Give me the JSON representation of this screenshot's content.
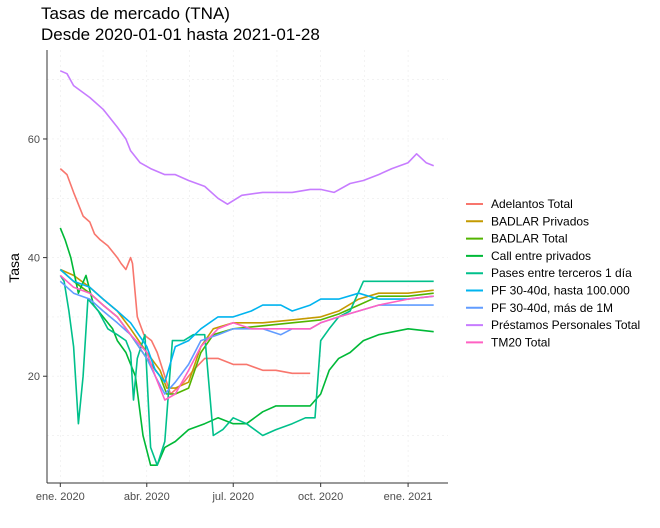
{
  "chart_data": {
    "type": "line",
    "title_line1": "Tasas de mercado (TNA)",
    "title_line2": "Desde 2020-01-01 hasta 2021-01-28",
    "xlabel": "",
    "ylabel": "Tasa",
    "x_ticks": [
      "ene. 2020",
      "abr. 2020",
      "jul. 2020",
      "oct. 2020",
      "ene. 2021"
    ],
    "y_ticks": [
      20,
      40,
      60
    ],
    "ylim": [
      2,
      75
    ],
    "xlim": [
      "2019-12-18",
      "2021-02-12"
    ],
    "grid": true,
    "legend_position": "right",
    "series": [
      {
        "name": "Adelantos Total",
        "color": "#F8766D",
        "points": [
          [
            "2020-01-01",
            55
          ],
          [
            "2020-01-08",
            54
          ],
          [
            "2020-01-15",
            51
          ],
          [
            "2020-01-25",
            47
          ],
          [
            "2020-02-01",
            46
          ],
          [
            "2020-02-06",
            44
          ],
          [
            "2020-02-12",
            43
          ],
          [
            "2020-02-20",
            42
          ],
          [
            "2020-03-01",
            40
          ],
          [
            "2020-03-05",
            39
          ],
          [
            "2020-03-10",
            38
          ],
          [
            "2020-03-15",
            40
          ],
          [
            "2020-03-17",
            39
          ],
          [
            "2020-03-22",
            30
          ],
          [
            "2020-03-29",
            27
          ],
          [
            "2020-04-06",
            26
          ],
          [
            "2020-04-12",
            24
          ],
          [
            "2020-04-20",
            20
          ],
          [
            "2020-04-26",
            17
          ],
          [
            "2020-05-03",
            18
          ],
          [
            "2020-05-10",
            19
          ],
          [
            "2020-05-20",
            21
          ],
          [
            "2020-06-01",
            23
          ],
          [
            "2020-06-15",
            23
          ],
          [
            "2020-07-01",
            22
          ],
          [
            "2020-07-15",
            22
          ],
          [
            "2020-08-01",
            21
          ],
          [
            "2020-08-15",
            21
          ],
          [
            "2020-09-01",
            20.5
          ],
          [
            "2020-09-20",
            20.5
          ]
        ]
      },
      {
        "name": "BADLAR Privados",
        "color": "#C49A00",
        "points": [
          [
            "2020-01-01",
            38
          ],
          [
            "2020-01-15",
            37
          ],
          [
            "2020-02-01",
            35
          ],
          [
            "2020-02-15",
            33
          ],
          [
            "2020-03-01",
            31
          ],
          [
            "2020-03-15",
            28
          ],
          [
            "2020-04-01",
            24
          ],
          [
            "2020-04-15",
            21
          ],
          [
            "2020-04-22",
            18
          ],
          [
            "2020-05-01",
            18
          ],
          [
            "2020-05-15",
            19
          ],
          [
            "2020-05-28",
            25
          ],
          [
            "2020-06-10",
            28
          ],
          [
            "2020-07-01",
            29
          ],
          [
            "2020-08-01",
            29
          ],
          [
            "2020-09-01",
            29.5
          ],
          [
            "2020-10-01",
            30
          ],
          [
            "2020-10-20",
            31
          ],
          [
            "2020-11-10",
            33
          ],
          [
            "2020-12-01",
            34
          ],
          [
            "2021-01-01",
            34
          ],
          [
            "2021-01-28",
            34.5
          ]
        ]
      },
      {
        "name": "BADLAR Total",
        "color": "#53B400",
        "points": [
          [
            "2020-01-01",
            38
          ],
          [
            "2020-01-15",
            36
          ],
          [
            "2020-02-01",
            34
          ],
          [
            "2020-02-15",
            32
          ],
          [
            "2020-03-01",
            30
          ],
          [
            "2020-03-15",
            27
          ],
          [
            "2020-04-01",
            23
          ],
          [
            "2020-04-15",
            20
          ],
          [
            "2020-04-22",
            17
          ],
          [
            "2020-05-01",
            17
          ],
          [
            "2020-05-15",
            18
          ],
          [
            "2020-05-28",
            24
          ],
          [
            "2020-06-10",
            27
          ],
          [
            "2020-07-01",
            28
          ],
          [
            "2020-08-01",
            28.5
          ],
          [
            "2020-09-01",
            29
          ],
          [
            "2020-10-01",
            29.5
          ],
          [
            "2020-10-20",
            30.5
          ],
          [
            "2020-11-10",
            32
          ],
          [
            "2020-12-01",
            33.5
          ],
          [
            "2021-01-01",
            33.5
          ],
          [
            "2021-01-28",
            34
          ]
        ]
      },
      {
        "name": "Call entre privados",
        "color": "#00B937",
        "points": [
          [
            "2020-01-01",
            45
          ],
          [
            "2020-01-06",
            43
          ],
          [
            "2020-01-12",
            40
          ],
          [
            "2020-01-20",
            34
          ],
          [
            "2020-01-28",
            37
          ],
          [
            "2020-02-05",
            32
          ],
          [
            "2020-02-15",
            30
          ],
          [
            "2020-02-25",
            28
          ],
          [
            "2020-03-01",
            26
          ],
          [
            "2020-03-10",
            24
          ],
          [
            "2020-03-20",
            20
          ],
          [
            "2020-03-28",
            10
          ],
          [
            "2020-04-05",
            5
          ],
          [
            "2020-04-12",
            5
          ],
          [
            "2020-04-20",
            8
          ],
          [
            "2020-05-01",
            9
          ],
          [
            "2020-05-15",
            11
          ],
          [
            "2020-06-01",
            12
          ],
          [
            "2020-06-15",
            13
          ],
          [
            "2020-07-01",
            12
          ],
          [
            "2020-07-15",
            12
          ],
          [
            "2020-08-01",
            14
          ],
          [
            "2020-08-15",
            15
          ],
          [
            "2020-09-01",
            15
          ],
          [
            "2020-09-20",
            15
          ],
          [
            "2020-10-01",
            17
          ],
          [
            "2020-10-10",
            21
          ],
          [
            "2020-10-20",
            23
          ],
          [
            "2020-11-01",
            24
          ],
          [
            "2020-11-15",
            26
          ],
          [
            "2020-12-01",
            27
          ],
          [
            "2021-01-01",
            28
          ],
          [
            "2021-01-28",
            27.5
          ]
        ]
      },
      {
        "name": "Pases entre terceros 1 día",
        "color": "#00C08B",
        "points": [
          [
            "2020-01-01",
            37
          ],
          [
            "2020-01-05",
            36
          ],
          [
            "2020-01-10",
            31
          ],
          [
            "2020-01-15",
            25
          ],
          [
            "2020-01-20",
            12
          ],
          [
            "2020-01-25",
            20
          ],
          [
            "2020-01-30",
            33
          ],
          [
            "2020-02-10",
            31
          ],
          [
            "2020-02-20",
            28
          ],
          [
            "2020-03-01",
            27
          ],
          [
            "2020-03-10",
            26
          ],
          [
            "2020-03-15",
            24
          ],
          [
            "2020-03-18",
            16
          ],
          [
            "2020-03-22",
            23
          ],
          [
            "2020-03-30",
            27
          ],
          [
            "2020-04-05",
            8
          ],
          [
            "2020-04-12",
            5
          ],
          [
            "2020-04-20",
            9
          ],
          [
            "2020-04-28",
            26
          ],
          [
            "2020-05-10",
            26
          ],
          [
            "2020-05-20",
            27
          ],
          [
            "2020-06-01",
            27
          ],
          [
            "2020-06-10",
            10
          ],
          [
            "2020-06-20",
            11
          ],
          [
            "2020-07-01",
            13
          ],
          [
            "2020-07-15",
            12
          ],
          [
            "2020-08-01",
            10
          ],
          [
            "2020-08-15",
            11
          ],
          [
            "2020-09-01",
            12
          ],
          [
            "2020-09-15",
            13
          ],
          [
            "2020-09-25",
            13
          ],
          [
            "2020-10-01",
            26
          ],
          [
            "2020-10-10",
            28
          ],
          [
            "2020-10-20",
            30
          ],
          [
            "2020-11-01",
            31
          ],
          [
            "2020-11-15",
            36
          ],
          [
            "2020-12-01",
            36
          ],
          [
            "2020-12-15",
            36
          ],
          [
            "2021-01-01",
            36
          ],
          [
            "2021-01-28",
            36
          ]
        ]
      },
      {
        "name": "PF 30-40d, hasta 100.000",
        "color": "#00B4EF",
        "points": [
          [
            "2020-01-01",
            38
          ],
          [
            "2020-01-15",
            36
          ],
          [
            "2020-02-01",
            35
          ],
          [
            "2020-02-15",
            33
          ],
          [
            "2020-03-01",
            31
          ],
          [
            "2020-03-15",
            29
          ],
          [
            "2020-04-01",
            25
          ],
          [
            "2020-04-10",
            21
          ],
          [
            "2020-04-20",
            19
          ],
          [
            "2020-05-01",
            25
          ],
          [
            "2020-05-15",
            26
          ],
          [
            "2020-05-28",
            28
          ],
          [
            "2020-06-15",
            30
          ],
          [
            "2020-07-01",
            30
          ],
          [
            "2020-07-20",
            31
          ],
          [
            "2020-08-01",
            32
          ],
          [
            "2020-08-20",
            32
          ],
          [
            "2020-09-01",
            31
          ],
          [
            "2020-09-20",
            32
          ],
          [
            "2020-10-01",
            33
          ],
          [
            "2020-10-20",
            33
          ],
          [
            "2020-11-10",
            34
          ],
          [
            "2020-12-01",
            33
          ],
          [
            "2021-01-01",
            33
          ],
          [
            "2021-01-28",
            33.5
          ]
        ]
      },
      {
        "name": "PF 30-40d, más de 1M",
        "color": "#619CFF",
        "points": [
          [
            "2020-01-01",
            36
          ],
          [
            "2020-01-15",
            34
          ],
          [
            "2020-02-01",
            33
          ],
          [
            "2020-02-15",
            31
          ],
          [
            "2020-03-01",
            29
          ],
          [
            "2020-03-15",
            27
          ],
          [
            "2020-04-01",
            23
          ],
          [
            "2020-04-10",
            20
          ],
          [
            "2020-04-20",
            17
          ],
          [
            "2020-05-01",
            19
          ],
          [
            "2020-05-15",
            22
          ],
          [
            "2020-05-28",
            26
          ],
          [
            "2020-06-15",
            27
          ],
          [
            "2020-07-01",
            28
          ],
          [
            "2020-07-20",
            28
          ],
          [
            "2020-08-01",
            28
          ],
          [
            "2020-08-20",
            27
          ],
          [
            "2020-09-01",
            28
          ],
          [
            "2020-09-20",
            28
          ],
          [
            "2020-10-01",
            29
          ],
          [
            "2020-10-20",
            30
          ],
          [
            "2020-11-10",
            31
          ],
          [
            "2020-12-01",
            32
          ],
          [
            "2021-01-01",
            32
          ],
          [
            "2021-01-28",
            32
          ]
        ]
      },
      {
        "name": "Préstamos Personales Total",
        "color": "#C77CFF",
        "points": [
          [
            "2020-01-01",
            71.5
          ],
          [
            "2020-01-08",
            71
          ],
          [
            "2020-01-15",
            69
          ],
          [
            "2020-02-01",
            67
          ],
          [
            "2020-02-15",
            65
          ],
          [
            "2020-03-01",
            62
          ],
          [
            "2020-03-10",
            60
          ],
          [
            "2020-03-15",
            58
          ],
          [
            "2020-03-25",
            56
          ],
          [
            "2020-04-05",
            55
          ],
          [
            "2020-04-20",
            54
          ],
          [
            "2020-05-01",
            54
          ],
          [
            "2020-05-15",
            53
          ],
          [
            "2020-06-01",
            52
          ],
          [
            "2020-06-15",
            50
          ],
          [
            "2020-06-25",
            49
          ],
          [
            "2020-07-10",
            50.5
          ],
          [
            "2020-08-01",
            51
          ],
          [
            "2020-08-20",
            51
          ],
          [
            "2020-09-01",
            51
          ],
          [
            "2020-09-20",
            51.5
          ],
          [
            "2020-10-01",
            51.5
          ],
          [
            "2020-10-15",
            51
          ],
          [
            "2020-11-01",
            52.5
          ],
          [
            "2020-11-15",
            53
          ],
          [
            "2020-12-01",
            54
          ],
          [
            "2020-12-15",
            55
          ],
          [
            "2021-01-01",
            56
          ],
          [
            "2021-01-10",
            57.5
          ],
          [
            "2021-01-20",
            56
          ],
          [
            "2021-01-28",
            55.5
          ]
        ]
      },
      {
        "name": "TM20 Total",
        "color": "#FF61C3",
        "points": [
          [
            "2020-01-01",
            37
          ],
          [
            "2020-01-15",
            35
          ],
          [
            "2020-02-01",
            34
          ],
          [
            "2020-02-15",
            32
          ],
          [
            "2020-03-01",
            30
          ],
          [
            "2020-03-15",
            27
          ],
          [
            "2020-04-01",
            24
          ],
          [
            "2020-04-10",
            20
          ],
          [
            "2020-04-20",
            16
          ],
          [
            "2020-05-01",
            17
          ],
          [
            "2020-05-15",
            21
          ],
          [
            "2020-05-28",
            25
          ],
          [
            "2020-06-15",
            28
          ],
          [
            "2020-07-01",
            29
          ],
          [
            "2020-07-20",
            28
          ],
          [
            "2020-08-01",
            28
          ],
          [
            "2020-08-20",
            28
          ],
          [
            "2020-09-01",
            28
          ],
          [
            "2020-09-20",
            28
          ],
          [
            "2020-10-01",
            29
          ],
          [
            "2020-10-20",
            30
          ],
          [
            "2020-11-10",
            31
          ],
          [
            "2020-12-01",
            32
          ],
          [
            "2021-01-01",
            33
          ],
          [
            "2021-01-28",
            33.5
          ]
        ]
      }
    ]
  }
}
